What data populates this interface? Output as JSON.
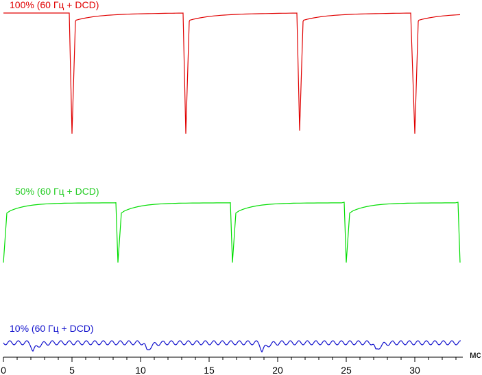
{
  "chart_data": {
    "type": "line",
    "xlabel": "мс",
    "xlim": [
      0,
      33.5
    ],
    "x_ticks": [
      "0",
      "5",
      "10",
      "15",
      "20",
      "25",
      "30"
    ],
    "grid": false,
    "legend": "none",
    "period_ms": 8.33,
    "series": [
      {
        "name": "100% (60 Гц + DCD)",
        "color": "#e00000",
        "pulse_starts_ms": [
          4.8,
          13.1,
          21.4,
          29.7
        ],
        "pulse_min_ms": [
          5.0,
          13.3,
          21.6,
          30.0
        ],
        "x": [
          0.0,
          4.7,
          5.0,
          5.3,
          6.0,
          8.0,
          13.0,
          13.3,
          13.6,
          14.3,
          16.3,
          21.3,
          21.6,
          21.9,
          22.6,
          24.6,
          29.6,
          30.0,
          30.3,
          31.0,
          33.0
        ],
        "y": [
          1.0,
          1.0,
          -1.0,
          0.88,
          0.93,
          0.96,
          1.0,
          -1.0,
          0.88,
          0.93,
          0.96,
          1.0,
          -0.95,
          0.88,
          0.93,
          0.96,
          1.0,
          -1.0,
          0.88,
          0.93,
          0.96
        ]
      },
      {
        "name": "50% (60 Гц + DCD)",
        "color": "#00dd00",
        "x": [
          0.0,
          0.3,
          1.0,
          3.0,
          8.1,
          8.35,
          8.6,
          9.3,
          11.3,
          16.4,
          16.7,
          16.95,
          17.6,
          19.6,
          24.7,
          25.0,
          25.25,
          25.9,
          27.9,
          33.0,
          33.3
        ],
        "y": [
          0.0,
          0.85,
          0.93,
          0.96,
          1.0,
          0.0,
          0.85,
          0.93,
          0.96,
          1.0,
          0.0,
          0.85,
          0.93,
          0.96,
          1.0,
          0.0,
          0.85,
          0.93,
          0.96,
          1.0,
          0.0
        ]
      },
      {
        "name": "10% (60 Гц + DCD)",
        "color": "#1010cc",
        "ripple_period_ms": 0.62,
        "dip_ms": [
          2.2,
          10.5,
          18.9,
          27.2
        ]
      }
    ]
  }
}
